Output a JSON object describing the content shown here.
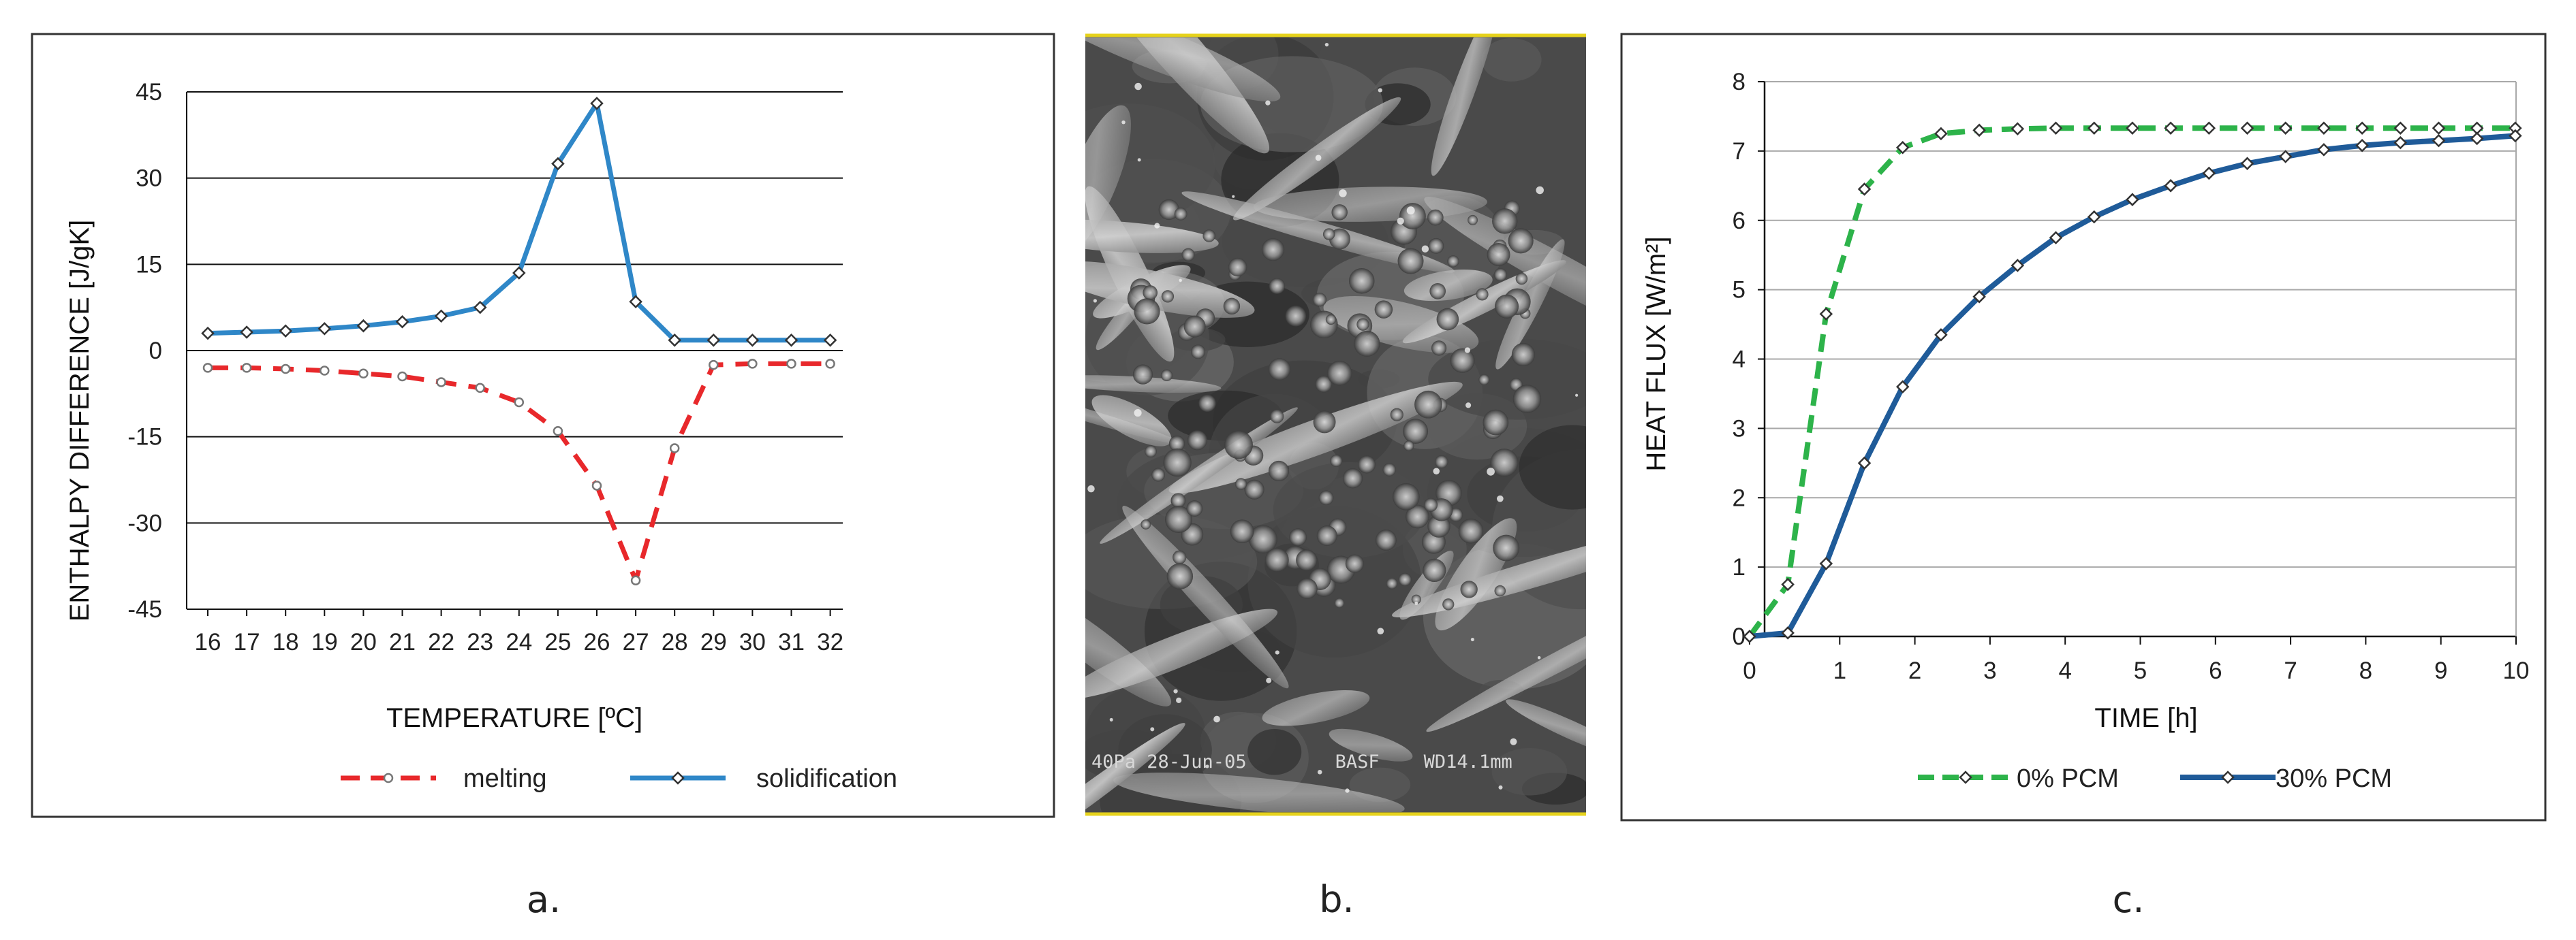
{
  "panels": {
    "a": {
      "caption": "a.",
      "chart_data": {
        "type": "line",
        "title": "",
        "xlabel": "TEMPERATURE  [ºC]",
        "ylabel": "ENTHALPY DIFFERENCE [J/gK]",
        "x": [
          16,
          17,
          18,
          19,
          20,
          21,
          22,
          23,
          24,
          25,
          26,
          27,
          28,
          29,
          30,
          31,
          32
        ],
        "xticks": [
          "16",
          "17",
          "18",
          "19",
          "20",
          "21",
          "22",
          "23",
          "24",
          "25",
          "26",
          "27",
          "28",
          "29",
          "30",
          "31",
          "32"
        ],
        "ylim": [
          -45,
          45
        ],
        "yticks": [
          45,
          30,
          15,
          0,
          -15,
          -30,
          -45
        ],
        "grid": "horizontal",
        "legend_position": "bottom",
        "series": [
          {
            "name": "melting",
            "color": "#e8282b",
            "style": "dashed",
            "marker": "open-circle",
            "values": [
              -3,
              -3,
              -3.2,
              -3.5,
              -4,
              -4.5,
              -5.5,
              -6.5,
              -9,
              -14,
              -23.5,
              -40,
              -17,
              -2.5,
              -2.3,
              -2.3,
              -2.3
            ]
          },
          {
            "name": "solidification",
            "color": "#2f87c8",
            "style": "solid",
            "marker": "diamond",
            "values": [
              3,
              3.2,
              3.4,
              3.8,
              4.3,
              5,
              6,
              7.5,
              13.5,
              32.5,
              43,
              8.5,
              1.8,
              1.8,
              1.8,
              1.8,
              1.8
            ]
          }
        ]
      }
    },
    "b": {
      "caption": "b.",
      "image_icon": "sem-micrograph-image",
      "sem_caption": "40Pa 28-Jun-05        BASF    WD14.1mm"
    },
    "c": {
      "caption": "c.",
      "chart_data": {
        "type": "line",
        "title": "",
        "xlabel": "TIME  [h]",
        "ylabel": "HEAT FLUX  [W/m²]",
        "xlim": [
          0,
          10
        ],
        "xticks": [
          "0",
          "1",
          "2",
          "3",
          "4",
          "5",
          "6",
          "7",
          "8",
          "9",
          "10"
        ],
        "ylim": [
          0,
          8
        ],
        "yticks": [
          "0",
          "1",
          "2",
          "3",
          "4",
          "5",
          "6",
          "7",
          "8"
        ],
        "grid": "horizontal",
        "legend_position": "bottom",
        "series": [
          {
            "name": "0% PCM",
            "color": "#2db34a",
            "style": "dashed",
            "marker": "diamond",
            "x": [
              0,
              0.5,
              1,
              1.5,
              2,
              2.5,
              3,
              3.5,
              4,
              4.5,
              5,
              5.5,
              6,
              6.5,
              7,
              7.5,
              8,
              8.5,
              9,
              9.5,
              10
            ],
            "values": [
              0,
              0.75,
              4.65,
              6.45,
              7.05,
              7.25,
              7.3,
              7.32,
              7.33,
              7.33,
              7.33,
              7.33,
              7.33,
              7.33,
              7.33,
              7.33,
              7.33,
              7.33,
              7.33,
              7.33,
              7.33
            ]
          },
          {
            "name": "30% PCM",
            "color": "#1f5b99",
            "style": "solid",
            "marker": "diamond",
            "x": [
              0,
              0.5,
              1,
              1.5,
              2,
              2.5,
              3,
              3.5,
              4,
              4.5,
              5,
              5.5,
              6,
              6.5,
              7,
              7.5,
              8,
              8.5,
              9,
              9.5,
              10
            ],
            "values": [
              0,
              0.05,
              1.05,
              2.5,
              3.6,
              4.35,
              4.9,
              5.35,
              5.75,
              6.05,
              6.3,
              6.5,
              6.68,
              6.82,
              6.92,
              7.02,
              7.08,
              7.12,
              7.15,
              7.18,
              7.22
            ]
          }
        ]
      }
    }
  }
}
